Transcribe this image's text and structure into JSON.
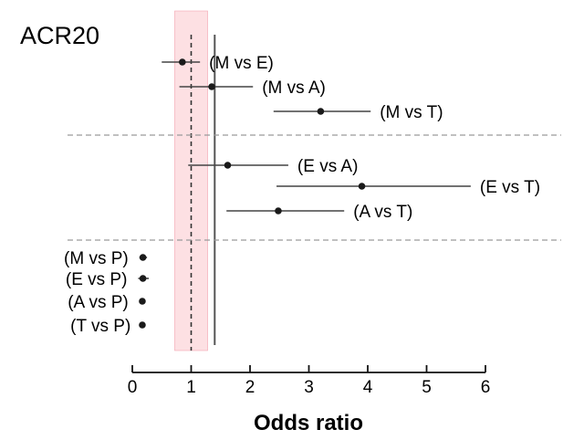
{
  "chart_data": {
    "type": "forest",
    "title": "ACR20",
    "xlabel": "Odds ratio",
    "xlim": [
      0,
      6
    ],
    "xticks": [
      0,
      1,
      2,
      3,
      4,
      5,
      6
    ],
    "reference_line": 1,
    "pooled_line": 1.4,
    "shaded_band": [
      0.72,
      1.28
    ],
    "colors": {
      "band": "#fde0e3",
      "band_edge": "#f3a6b2",
      "points": "#1a1a1a",
      "lines": "#444444",
      "separator": "#9a9a9a"
    },
    "groups": [
      {
        "rows": [
          {
            "label": "(M vs E)",
            "estimate": 0.85,
            "lower": 0.5,
            "upper": 1.15
          },
          {
            "label": "(M vs A)",
            "estimate": 1.35,
            "lower": 0.8,
            "upper": 2.05
          },
          {
            "label": "(M vs T)",
            "estimate": 3.2,
            "lower": 2.4,
            "upper": 4.05
          }
        ]
      },
      {
        "rows": [
          {
            "label": "(E vs A)",
            "estimate": 1.62,
            "lower": 0.95,
            "upper": 2.65
          },
          {
            "label": "(E vs T)",
            "estimate": 3.9,
            "lower": 2.45,
            "upper": 5.75
          },
          {
            "label": "(A vs T)",
            "estimate": 2.48,
            "lower": 1.6,
            "upper": 3.6
          }
        ]
      },
      {
        "rows": [
          {
            "label": "(M vs P)",
            "estimate": 0.18,
            "lower": 0.12,
            "upper": 0.25
          },
          {
            "label": "(E vs P)",
            "estimate": 0.18,
            "lower": 0.1,
            "upper": 0.28
          },
          {
            "label": "(A vs P)",
            "estimate": 0.17,
            "lower": 0.12,
            "upper": 0.22
          },
          {
            "label": "(T vs P)",
            "estimate": 0.17,
            "lower": 0.16,
            "upper": 0.18
          }
        ]
      }
    ]
  }
}
